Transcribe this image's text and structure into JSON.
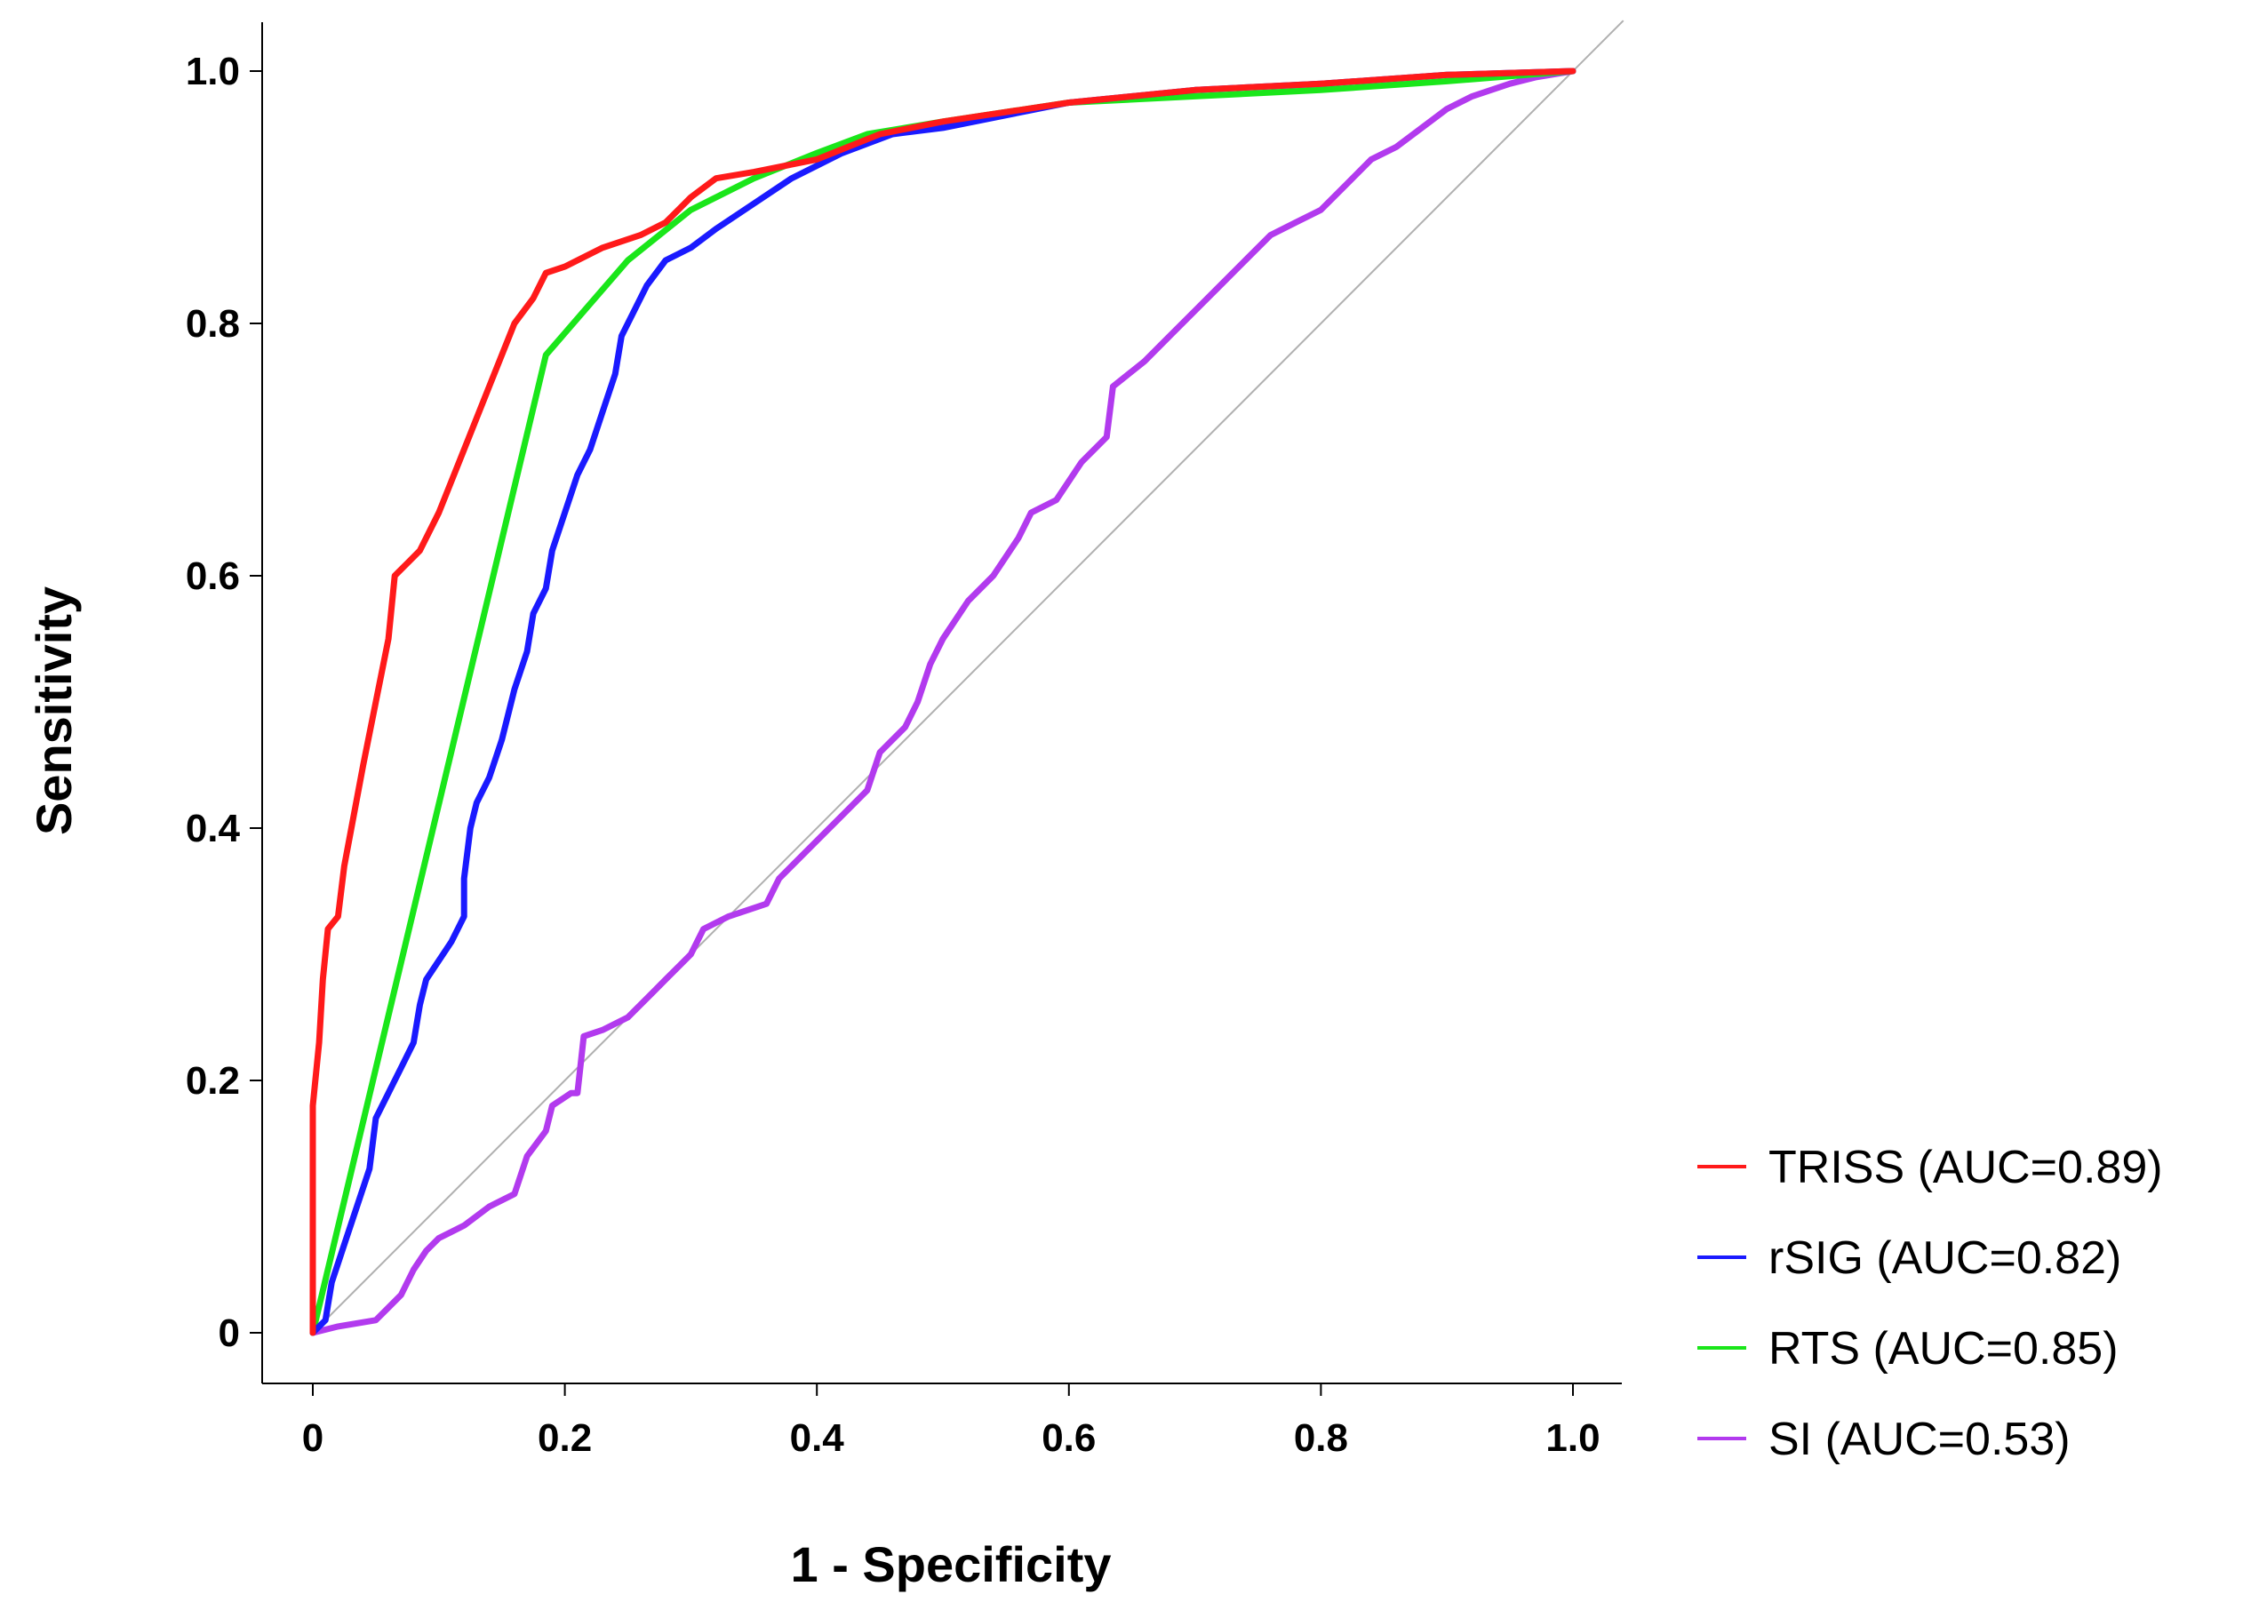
{
  "chart_data": {
    "type": "line",
    "title": "",
    "xlabel": "1 - Specificity",
    "ylabel": "Sensitivity",
    "xlim": [
      0,
      1
    ],
    "ylim": [
      0,
      1
    ],
    "x_ticks": [
      {
        "value": 0,
        "label": "0"
      },
      {
        "value": 0.2,
        "label": "0.2"
      },
      {
        "value": 0.4,
        "label": "0.4"
      },
      {
        "value": 0.6,
        "label": "0.6"
      },
      {
        "value": 0.8,
        "label": "0.8"
      },
      {
        "value": 1.0,
        "label": "1.0"
      }
    ],
    "y_ticks": [
      {
        "value": 0,
        "label": "0"
      },
      {
        "value": 0.2,
        "label": "0.2"
      },
      {
        "value": 0.4,
        "label": "0.4"
      },
      {
        "value": 0.6,
        "label": "0.6"
      },
      {
        "value": 0.8,
        "label": "0.8"
      },
      {
        "value": 1.0,
        "label": "1.0"
      }
    ],
    "grid": false,
    "legend_position": "right-bottom",
    "reference_line": {
      "name": "chance",
      "color": "#b0b0b0",
      "points": [
        [
          0,
          0
        ],
        [
          1.04,
          1.04
        ]
      ]
    },
    "series": [
      {
        "name": "TRISS",
        "legend_label": "TRISS (AUC=0.89)",
        "color": "#ff1a1a",
        "points": [
          [
            0,
            0
          ],
          [
            0,
            0.18
          ],
          [
            0.005,
            0.23
          ],
          [
            0.008,
            0.28
          ],
          [
            0.012,
            0.32
          ],
          [
            0.02,
            0.33
          ],
          [
            0.025,
            0.37
          ],
          [
            0.04,
            0.45
          ],
          [
            0.05,
            0.5
          ],
          [
            0.06,
            0.55
          ],
          [
            0.065,
            0.6
          ],
          [
            0.075,
            0.61
          ],
          [
            0.085,
            0.62
          ],
          [
            0.1,
            0.65
          ],
          [
            0.12,
            0.7
          ],
          [
            0.14,
            0.75
          ],
          [
            0.16,
            0.8
          ],
          [
            0.175,
            0.82
          ],
          [
            0.185,
            0.84
          ],
          [
            0.2,
            0.845
          ],
          [
            0.23,
            0.86
          ],
          [
            0.26,
            0.87
          ],
          [
            0.28,
            0.88
          ],
          [
            0.3,
            0.9
          ],
          [
            0.32,
            0.915
          ],
          [
            0.35,
            0.92
          ],
          [
            0.4,
            0.93
          ],
          [
            0.45,
            0.95
          ],
          [
            0.5,
            0.96
          ],
          [
            0.6,
            0.975
          ],
          [
            0.7,
            0.985
          ],
          [
            0.8,
            0.99
          ],
          [
            0.9,
            0.997
          ],
          [
            1,
            1
          ]
        ]
      },
      {
        "name": "rSIG",
        "legend_label": "rSIG (AUC=0.82)",
        "color": "#1a1aff",
        "points": [
          [
            0,
            0
          ],
          [
            0.01,
            0.01
          ],
          [
            0.015,
            0.04
          ],
          [
            0.025,
            0.07
          ],
          [
            0.035,
            0.1
          ],
          [
            0.045,
            0.13
          ],
          [
            0.05,
            0.17
          ],
          [
            0.06,
            0.19
          ],
          [
            0.07,
            0.21
          ],
          [
            0.08,
            0.23
          ],
          [
            0.085,
            0.26
          ],
          [
            0.09,
            0.28
          ],
          [
            0.11,
            0.31
          ],
          [
            0.12,
            0.33
          ],
          [
            0.12,
            0.36
          ],
          [
            0.125,
            0.4
          ],
          [
            0.13,
            0.42
          ],
          [
            0.14,
            0.44
          ],
          [
            0.15,
            0.47
          ],
          [
            0.16,
            0.51
          ],
          [
            0.17,
            0.54
          ],
          [
            0.175,
            0.57
          ],
          [
            0.185,
            0.59
          ],
          [
            0.19,
            0.62
          ],
          [
            0.2,
            0.65
          ],
          [
            0.21,
            0.68
          ],
          [
            0.22,
            0.7
          ],
          [
            0.23,
            0.73
          ],
          [
            0.24,
            0.76
          ],
          [
            0.245,
            0.79
          ],
          [
            0.255,
            0.81
          ],
          [
            0.265,
            0.83
          ],
          [
            0.28,
            0.85
          ],
          [
            0.3,
            0.86
          ],
          [
            0.32,
            0.875
          ],
          [
            0.35,
            0.895
          ],
          [
            0.38,
            0.915
          ],
          [
            0.42,
            0.935
          ],
          [
            0.46,
            0.95
          ],
          [
            0.5,
            0.955
          ],
          [
            0.6,
            0.975
          ],
          [
            0.7,
            0.985
          ],
          [
            0.8,
            0.99
          ],
          [
            0.9,
            0.997
          ],
          [
            1,
            1
          ]
        ]
      },
      {
        "name": "RTS",
        "legend_label": "RTS (AUC=0.85)",
        "color": "#1ae61a",
        "points": [
          [
            0,
            0
          ],
          [
            0.185,
            0.775
          ],
          [
            0.25,
            0.85
          ],
          [
            0.3,
            0.89
          ],
          [
            0.35,
            0.915
          ],
          [
            0.4,
            0.935
          ],
          [
            0.44,
            0.95
          ],
          [
            0.5,
            0.96
          ],
          [
            0.6,
            0.975
          ],
          [
            0.7,
            0.98
          ],
          [
            0.8,
            0.985
          ],
          [
            0.9,
            0.992
          ],
          [
            1,
            1
          ]
        ]
      },
      {
        "name": "SI",
        "legend_label": "SI (AUC=0.53)",
        "color": "#b23aee",
        "points": [
          [
            0,
            0
          ],
          [
            0.02,
            0.005
          ],
          [
            0.05,
            0.01
          ],
          [
            0.06,
            0.02
          ],
          [
            0.07,
            0.03
          ],
          [
            0.08,
            0.05
          ],
          [
            0.09,
            0.065
          ],
          [
            0.1,
            0.075
          ],
          [
            0.12,
            0.085
          ],
          [
            0.14,
            0.1
          ],
          [
            0.16,
            0.11
          ],
          [
            0.17,
            0.14
          ],
          [
            0.185,
            0.16
          ],
          [
            0.19,
            0.18
          ],
          [
            0.205,
            0.19
          ],
          [
            0.21,
            0.19
          ],
          [
            0.215,
            0.235
          ],
          [
            0.23,
            0.24
          ],
          [
            0.25,
            0.25
          ],
          [
            0.27,
            0.27
          ],
          [
            0.28,
            0.28
          ],
          [
            0.3,
            0.3
          ],
          [
            0.31,
            0.32
          ],
          [
            0.33,
            0.33
          ],
          [
            0.36,
            0.34
          ],
          [
            0.37,
            0.36
          ],
          [
            0.4,
            0.39
          ],
          [
            0.42,
            0.41
          ],
          [
            0.44,
            0.43
          ],
          [
            0.45,
            0.46
          ],
          [
            0.47,
            0.48
          ],
          [
            0.48,
            0.5
          ],
          [
            0.49,
            0.53
          ],
          [
            0.5,
            0.55
          ],
          [
            0.52,
            0.58
          ],
          [
            0.54,
            0.6
          ],
          [
            0.56,
            0.63
          ],
          [
            0.57,
            0.65
          ],
          [
            0.59,
            0.66
          ],
          [
            0.61,
            0.69
          ],
          [
            0.63,
            0.71
          ],
          [
            0.635,
            0.75
          ],
          [
            0.66,
            0.77
          ],
          [
            0.68,
            0.79
          ],
          [
            0.7,
            0.81
          ],
          [
            0.72,
            0.83
          ],
          [
            0.74,
            0.85
          ],
          [
            0.76,
            0.87
          ],
          [
            0.78,
            0.88
          ],
          [
            0.8,
            0.89
          ],
          [
            0.82,
            0.91
          ],
          [
            0.84,
            0.93
          ],
          [
            0.86,
            0.94
          ],
          [
            0.88,
            0.955
          ],
          [
            0.9,
            0.97
          ],
          [
            0.92,
            0.98
          ],
          [
            0.95,
            0.99
          ],
          [
            0.97,
            0.995
          ],
          [
            1,
            1
          ]
        ]
      }
    ]
  }
}
